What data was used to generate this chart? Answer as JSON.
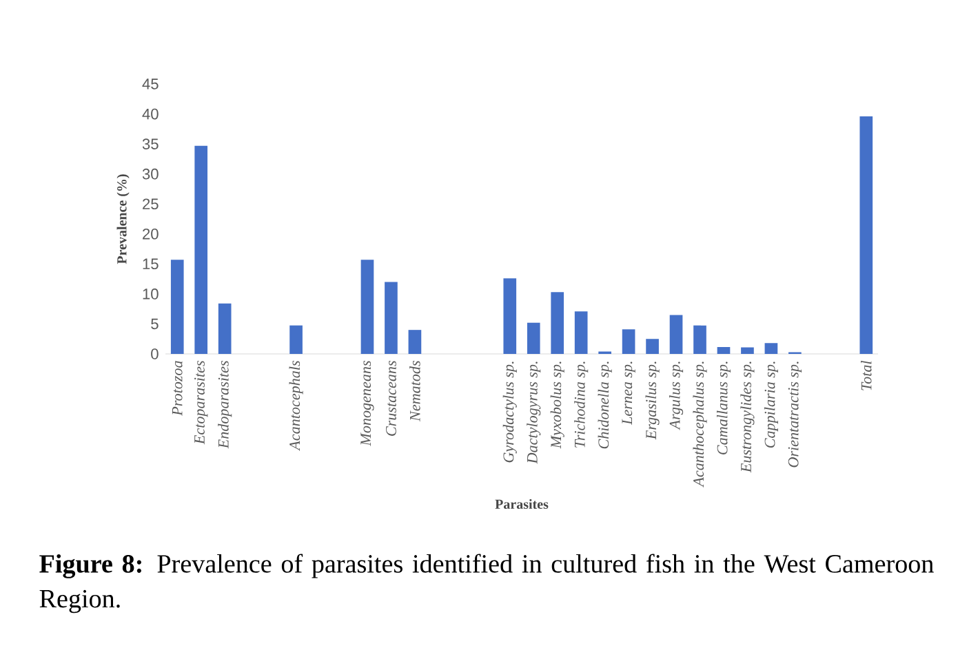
{
  "chart_data": {
    "type": "bar",
    "xlabel": "Parasites",
    "ylabel": "Prevalence (%)",
    "categories": [
      "Protozoa",
      "Ectoparasites",
      "Endoparasites",
      null,
      null,
      "Acantocephals",
      null,
      null,
      "Monogeneans",
      "Crustaceans",
      "Nematods",
      null,
      null,
      null,
      "Gyrodactylus sp.",
      "Dactylogyrus sp.",
      "Myxobolus sp.",
      "Trichodina sp.",
      "Chidonella sp.",
      "Lernea sp.",
      "Ergasilus sp.",
      "Argulus sp.",
      "Acanthocephalus sp.",
      "Camallanus sp.",
      "Eustrongylides sp.",
      "Cappilaria sp.",
      "Orientatractis sp.",
      null,
      null,
      "Total"
    ],
    "values": [
      15.7,
      34.7,
      8.4,
      null,
      null,
      4.75,
      null,
      null,
      15.7,
      12.0,
      4.0,
      null,
      null,
      null,
      12.6,
      5.2,
      10.3,
      7.1,
      0.4,
      4.1,
      2.5,
      6.5,
      4.75,
      1.15,
      1.1,
      1.8,
      0.3,
      null,
      null,
      39.6
    ],
    "color": "#4470c8",
    "ylim": [
      0,
      45
    ],
    "yticks": [
      0,
      5,
      10,
      15,
      20,
      25,
      30,
      35,
      40,
      45
    ],
    "annotations": [
      "**Figure 8:** Prevalence of parasites identified in cultured fish in the West Cameroon Region."
    ]
  }
}
